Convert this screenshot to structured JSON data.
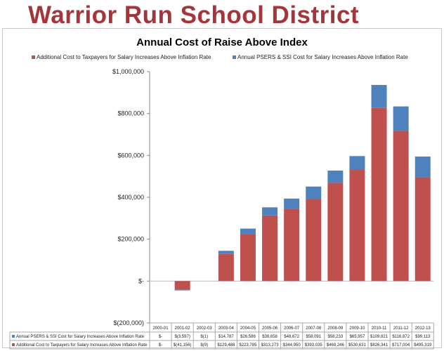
{
  "banner": "Warrior Run School District",
  "colors": {
    "banner": "#a5353a",
    "additional": "#c0504d",
    "psers": "#4f81bd"
  },
  "chart_data": {
    "type": "bar",
    "stacked": true,
    "title": "Annual Cost of Raise Above Index",
    "legend_position": "top",
    "categories": [
      "2000-01",
      "2001-02",
      "2002-03",
      "2003-04",
      "2004-05",
      "2005-06",
      "2006-07",
      "2007-08",
      "2008-09",
      "2009-10",
      "2010-11",
      "2011-12",
      "2012-13"
    ],
    "ylim": [
      -200000,
      1000000
    ],
    "yticks": [
      -200000,
      0,
      200000,
      400000,
      600000,
      800000,
      1000000
    ],
    "ytick_labels": [
      "$(200,000)",
      "$-",
      "$200,000",
      "$400,000",
      "$600,000",
      "$800,000",
      "$1,000,000"
    ],
    "grid": false,
    "series": [
      {
        "name": "Additional Cost to Taxpayers for Salary Increases Above Inflation Rate",
        "color": "#c0504d",
        "values": [
          0,
          -41156,
          -9,
          129488,
          223785,
          313273,
          344950,
          393035,
          469246,
          530631,
          826341,
          717004,
          495319
        ],
        "labels": [
          "$-",
          "$(41,156)",
          "$(9)",
          "$129,488",
          "$223,785",
          "$313,273",
          "$344,950",
          "$393,035",
          "$469,246",
          "$530,631",
          "$826,341",
          "$717,004",
          "$495,319"
        ]
      },
      {
        "name": "Annual PSERS & SSI Cost for  Salary Increases Above Inflation Rate",
        "color": "#4f81bd",
        "values": [
          0,
          -3597,
          -1,
          14787,
          26586,
          38658,
          48672,
          58091,
          58233,
          65957,
          109821,
          116872,
          99113
        ],
        "labels": [
          "$-",
          "$(3,597)",
          "$(1)",
          "$14,787",
          "$26,586",
          "$38,658",
          "$48,672",
          "$58,091",
          "$58,233",
          "$65,957",
          "$109,821",
          "$116,872",
          "$99,113"
        ]
      }
    ]
  }
}
